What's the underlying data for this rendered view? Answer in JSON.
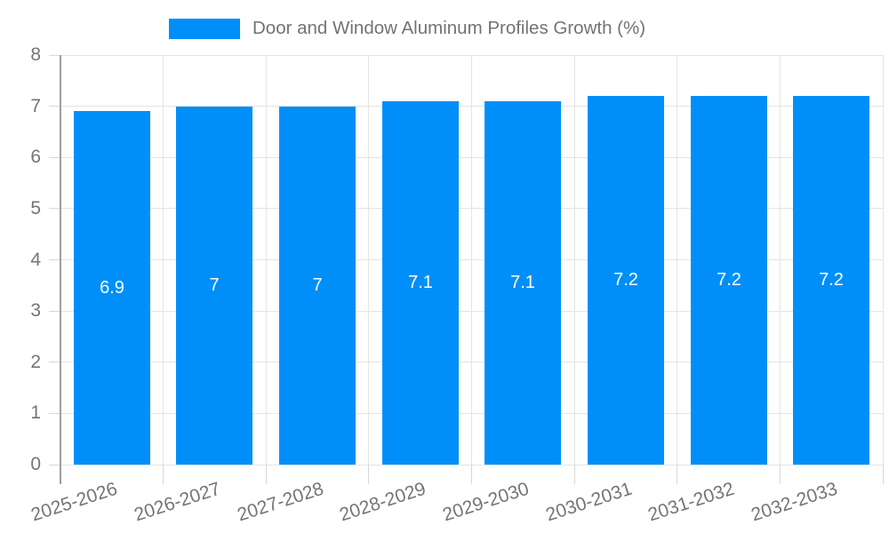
{
  "legend": {
    "label": "Door and Window Aluminum Profiles Growth (%)"
  },
  "colors": {
    "bar": "#008FF8",
    "grid": "#E4E4E4",
    "tick": "#D8D8D8",
    "axis": "#9E9E9E",
    "axis_label": "#757575",
    "legend_label": "#737373",
    "bar_label": "#FFFFFF",
    "background": "#FFFFFF"
  },
  "chart_data": {
    "type": "bar",
    "title": "Door and Window Aluminum Profiles Growth (%)",
    "categories": [
      "2025-2026",
      "2026-2027",
      "2027-2028",
      "2028-2029",
      "2029-2030",
      "2030-2031",
      "2031-2032",
      "2032-2033"
    ],
    "values": [
      6.9,
      7,
      7,
      7.1,
      7.1,
      7.2,
      7.2,
      7.2
    ],
    "value_labels": [
      "6.9",
      "7",
      "7",
      "7.1",
      "7.1",
      "7.2",
      "7.2",
      "7.2"
    ],
    "series_name": "Door and Window Aluminum Profiles Growth (%)",
    "xlabel": "",
    "ylabel": "",
    "ylim": [
      0,
      8
    ],
    "yticks": [
      0,
      1,
      2,
      3,
      4,
      5,
      6,
      7,
      8
    ],
    "grid": true,
    "legend_position": "top",
    "bar_label_position": "center",
    "x_tick_label_rotation_deg": -18
  }
}
